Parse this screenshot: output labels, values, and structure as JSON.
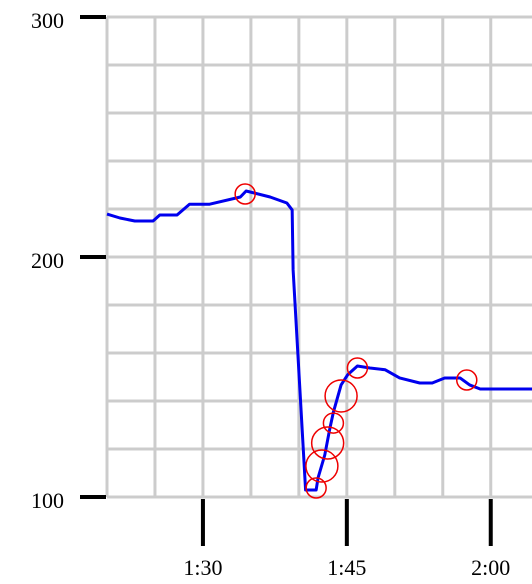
{
  "chart_data": {
    "type": "line",
    "x": [
      80,
      81.35,
      82.9,
      84.8,
      85.5,
      87.3,
      88.6,
      90.7,
      93.9,
      94.5,
      97,
      98.75,
      99.3,
      99.4,
      100.7,
      101.8,
      102,
      102.7,
      103.2,
      103.6,
      104.4,
      105.1,
      106.1,
      107.4,
      109,
      110.5,
      112.6,
      113.9,
      115.2,
      116.8,
      117.8,
      118.9,
      124.3
    ],
    "series": [
      {
        "color": "#0000ee",
        "values": [
          217.9,
          216.25,
          215,
          215,
          217.5,
          217.5,
          222,
          222,
          225,
          227.5,
          225,
          222.5,
          219.6,
          194.6,
          102.9,
          102.9,
          108,
          117.5,
          128,
          135.4,
          146.7,
          151,
          154.6,
          153.75,
          153,
          149.6,
          147.5,
          147.5,
          149.6,
          149.6,
          146.7,
          145,
          145
        ]
      }
    ],
    "markers": {
      "color": "#ee0000",
      "x": [
        94.4,
        101.8,
        102.4,
        103.0,
        103.6,
        104.4,
        106.1,
        117.5
      ],
      "values": [
        226.25,
        103.75,
        112.9,
        122.5,
        130.8,
        142.1,
        153.75,
        148.75
      ],
      "sizes": [
        10,
        10,
        16,
        16,
        10,
        16,
        10,
        10
      ]
    },
    "xlim": [
      80,
      124.3
    ],
    "ylim": [
      100,
      300
    ],
    "xticks": [
      {
        "value": 90,
        "label": "1:30"
      },
      {
        "value": 105,
        "label": "1:45"
      },
      {
        "value": 120,
        "label": "2:00"
      }
    ],
    "yticks": [
      100,
      200,
      300
    ],
    "grid": true,
    "xgrid": [
      80,
      85,
      90,
      95,
      100,
      105,
      110,
      115,
      120
    ],
    "ygrid": [
      100,
      120,
      140,
      160,
      180,
      200,
      220,
      240,
      260,
      280,
      300
    ]
  }
}
